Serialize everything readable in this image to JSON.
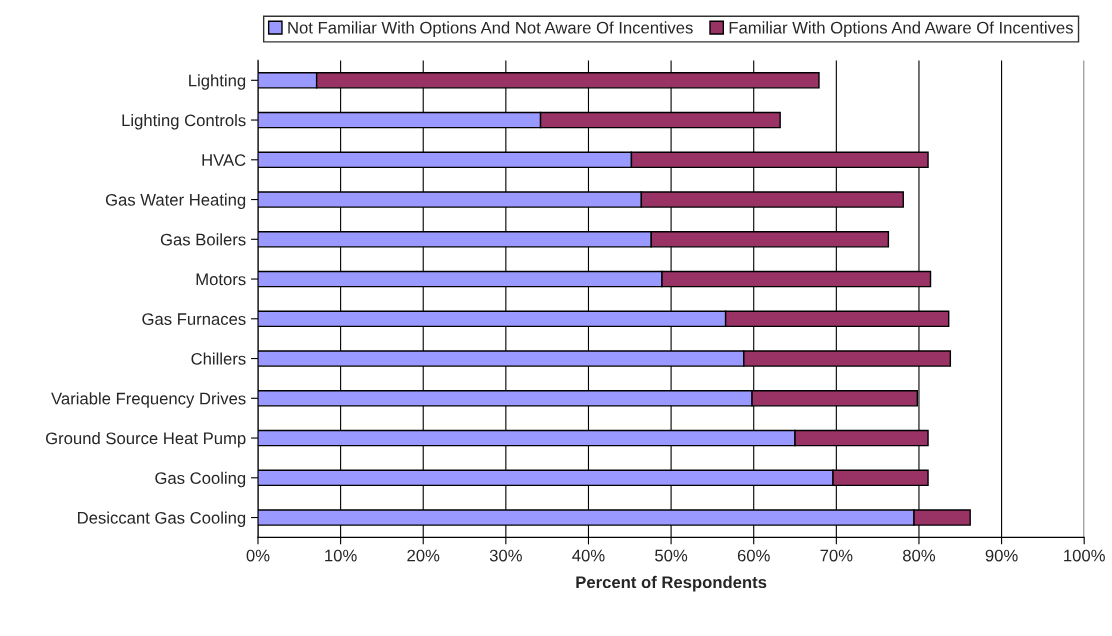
{
  "chart_data": {
    "type": "bar",
    "orientation": "horizontal",
    "stacked": true,
    "xlabel": "Percent of Respondents",
    "categories": [
      "Lighting",
      "Lighting Controls",
      "HVAC",
      "Gas Water Heating",
      "Gas Boilers",
      "Motors",
      "Gas Furnaces",
      "Chillers",
      "Variable Frequency Drives",
      "Ground Source Heat Pump",
      "Gas Cooling",
      "Desiccant Gas Cooling"
    ],
    "series": [
      {
        "name": "Not Familiar With Options And Not Aware Of Incentives",
        "color": "#9999ff",
        "values": [
          7.1,
          34.2,
          45.2,
          46.4,
          47.6,
          48.9,
          56.6,
          58.8,
          59.8,
          65.0,
          69.6,
          79.4
        ]
      },
      {
        "name": "Familiar With Options And Aware Of Incentives",
        "color": "#993366",
        "values": [
          60.8,
          29.0,
          35.9,
          31.7,
          28.7,
          32.5,
          27.0,
          25.0,
          20.0,
          16.1,
          11.5,
          6.8
        ]
      }
    ],
    "xlim": [
      0,
      100
    ],
    "xticks": [
      {
        "value": 0,
        "label": "0%"
      },
      {
        "value": 10,
        "label": "10%"
      },
      {
        "value": 20,
        "label": "20%"
      },
      {
        "value": 30,
        "label": "30%"
      },
      {
        "value": 40,
        "label": "40%"
      },
      {
        "value": 50,
        "label": "50%"
      },
      {
        "value": 60,
        "label": "60%"
      },
      {
        "value": 70,
        "label": "70%"
      },
      {
        "value": 80,
        "label": "80%"
      },
      {
        "value": 90,
        "label": "90%"
      },
      {
        "value": 100,
        "label": "100%"
      }
    ],
    "grid": "x",
    "legend": "top"
  }
}
